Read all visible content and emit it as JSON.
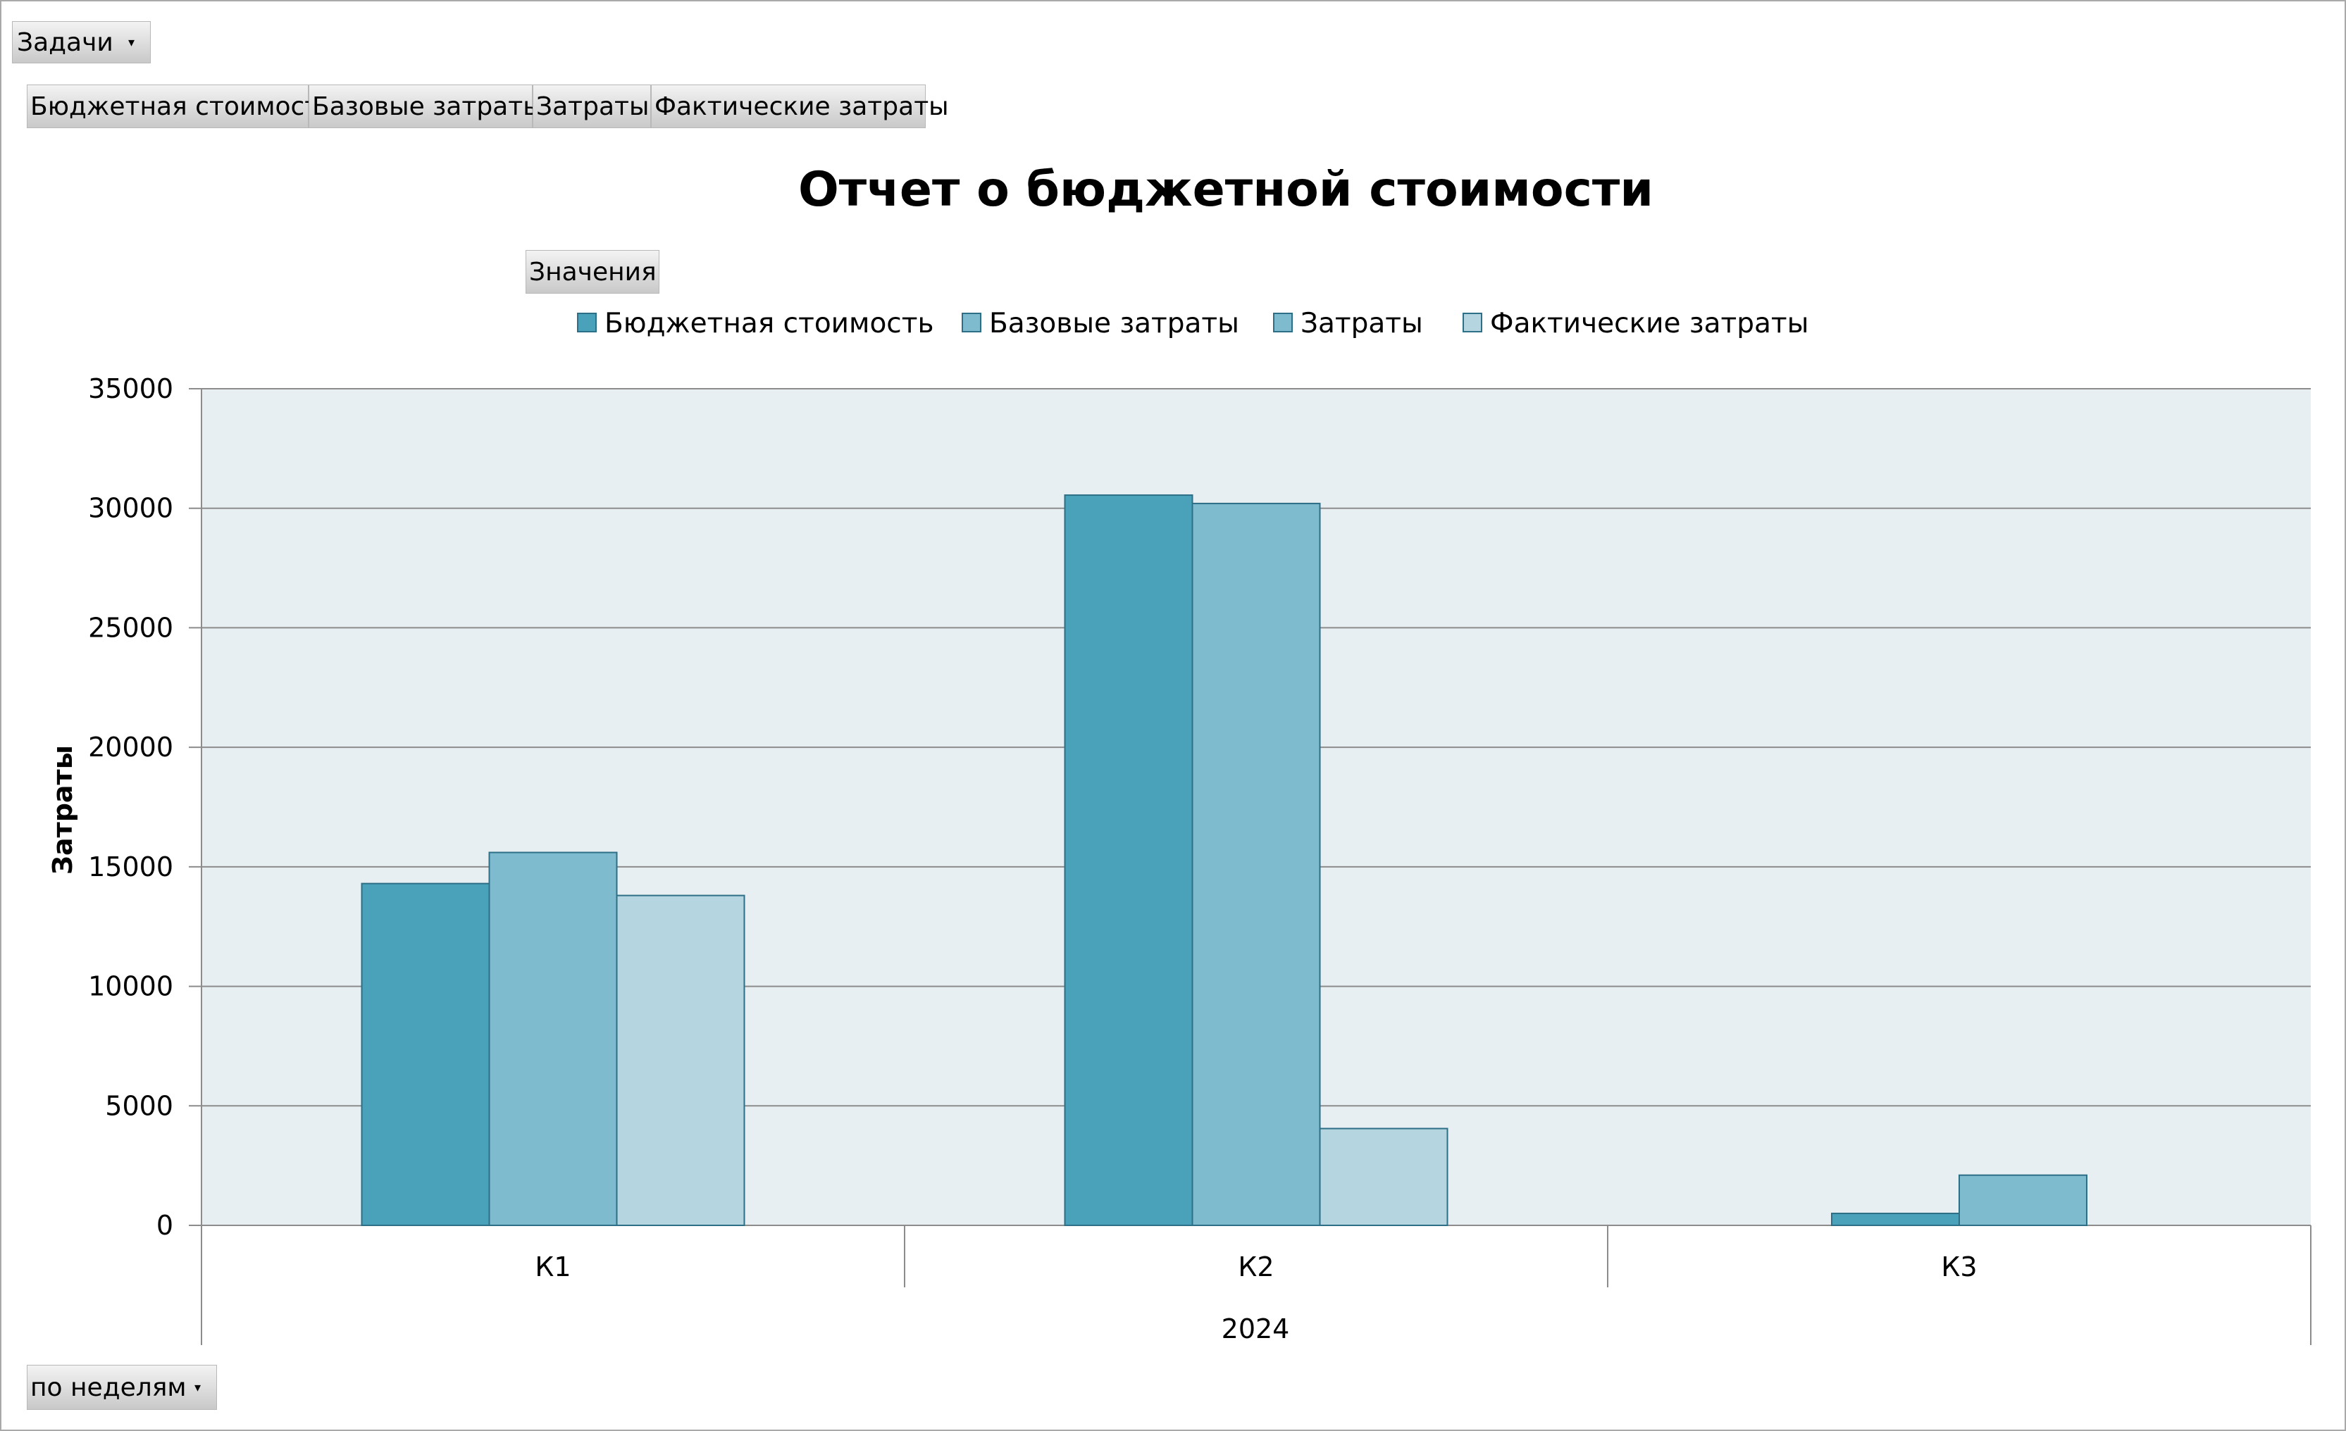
{
  "filters": {
    "tasks_label": "Задачи",
    "period_label": "по неделям"
  },
  "series_buttons": [
    "Бюджетная стоимость",
    "Базовые затраты",
    "Затраты",
    "Фактические затраты"
  ],
  "values_label": "Значения",
  "colors": {
    "budget": "#4aa2ba",
    "baseline": "#7fbbce",
    "cost": "#7fbbce",
    "actual": "#b5d6e0",
    "plot_bg": "#e8eff3",
    "bar_stroke": "#2d6f86",
    "grid": "#8c8c8c"
  },
  "chart_data": {
    "type": "bar",
    "title": "Отчет о бюджетной стоимости",
    "ylabel": "Затраты",
    "xlabel": "2024",
    "categories": [
      "К1",
      "К2",
      "К3"
    ],
    "ylim": [
      0,
      35000
    ],
    "yticks": [
      0,
      5000,
      10000,
      15000,
      20000,
      25000,
      30000,
      35000
    ],
    "grid": true,
    "legend_position": "top",
    "series": [
      {
        "name": "Бюджетная стоимость",
        "color_key": "budget",
        "values": [
          14300,
          30550,
          500
        ]
      },
      {
        "name": "Базовые затраты",
        "color_key": "baseline",
        "values": [
          0,
          0,
          0
        ]
      },
      {
        "name": "Затраты",
        "color_key": "cost",
        "values": [
          15600,
          30200,
          2100
        ]
      },
      {
        "name": "Фактические затраты",
        "color_key": "actual",
        "values": [
          13800,
          4050,
          0
        ]
      }
    ]
  }
}
